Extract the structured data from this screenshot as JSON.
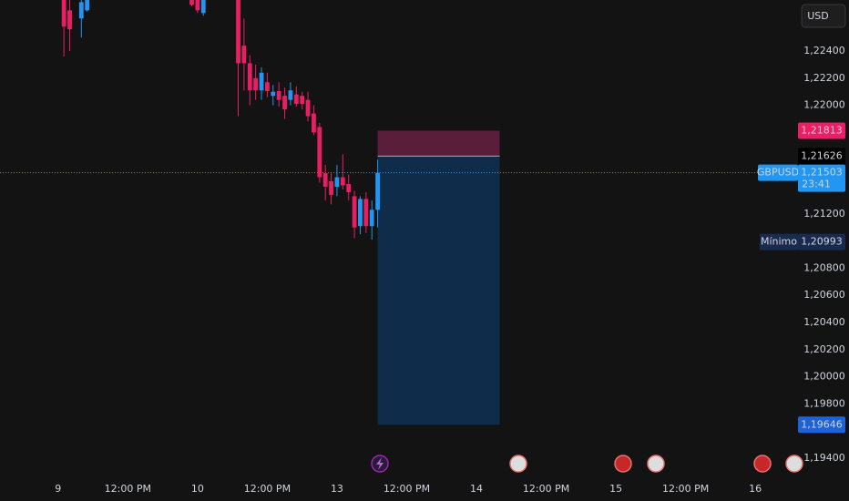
{
  "chart_data": {
    "type": "candlestick",
    "symbol": "GBPUSD",
    "currency": "USD",
    "up_color": "#2196f3",
    "down_color": "#e91e63",
    "x": [
      1,
      2,
      4,
      5,
      23,
      24,
      25,
      31,
      32,
      33,
      34,
      35,
      36,
      37,
      38,
      39,
      40,
      41,
      42,
      43,
      44,
      45,
      46,
      47,
      48,
      49,
      50,
      51,
      52,
      53,
      54,
      55
    ],
    "open": [
      1.228,
      1.227,
      1.2264,
      1.227,
      1.228,
      1.2279,
      1.2268,
      1.228,
      1.2244,
      1.2231,
      1.222,
      1.2211,
      1.2217,
      1.2207,
      1.22105,
      1.2207,
      1.2204,
      1.2208,
      1.2207,
      1.2204,
      1.2194,
      1.2184,
      1.215,
      1.2144,
      1.214,
      1.2147,
      1.2142,
      1.2133,
      1.2111,
      1.2131,
      1.2111,
      1.2123
    ],
    "high": [
      1.2285,
      1.228,
      1.228,
      1.228,
      1.2285,
      1.2285,
      1.228,
      1.2285,
      1.2264,
      1.2237,
      1.223,
      1.2228,
      1.2224,
      1.2215,
      1.2217,
      1.2213,
      1.2217,
      1.2214,
      1.221,
      1.221,
      1.22,
      1.2187,
      1.2156,
      1.215,
      1.2156,
      1.2164,
      1.2149,
      1.2137,
      1.2133,
      1.2136,
      1.213,
      1.216
    ],
    "low": [
      1.2236,
      1.224,
      1.225,
      1.2269,
      1.2273,
      1.2268,
      1.2266,
      1.2192,
      1.2211,
      1.22,
      1.2204,
      1.2204,
      1.2206,
      1.22,
      1.2199,
      1.219,
      1.22,
      1.2199,
      1.2197,
      1.2188,
      1.2178,
      1.2143,
      1.213,
      1.2127,
      1.2133,
      1.2138,
      1.213,
      1.2102,
      1.2105,
      1.2106,
      1.2101,
      1.211
    ],
    "close": [
      1.2258,
      1.2256,
      1.2276,
      1.2278,
      1.2274,
      1.227,
      1.2278,
      1.2231,
      1.2231,
      1.2211,
      1.2211,
      1.2224,
      1.22105,
      1.221,
      1.2204,
      1.2197,
      1.2211,
      1.2201,
      1.2201,
      1.2192,
      1.218,
      1.2147,
      1.214,
      1.2134,
      1.2147,
      1.2141,
      1.2136,
      1.211,
      1.2131,
      1.2111,
      1.2123,
      1.21503
    ],
    "xlim": [
      -10,
      126.4
    ],
    "ylim": [
      1.19252,
      1.22776
    ],
    "xticks": [
      {
        "value": 0,
        "label": "9"
      },
      {
        "value": 12,
        "label": "12:00 PM"
      },
      {
        "value": 24,
        "label": "10"
      },
      {
        "value": 36,
        "label": "12:00 PM"
      },
      {
        "value": 48,
        "label": "13"
      },
      {
        "value": 60,
        "label": "12:00 PM"
      },
      {
        "value": 72,
        "label": "14"
      },
      {
        "value": 84,
        "label": "12:00 PM"
      },
      {
        "value": 96,
        "label": "15"
      },
      {
        "value": 108,
        "label": "12:00 PM"
      },
      {
        "value": 120,
        "label": "16"
      }
    ],
    "yticks": [
      {
        "value": 1.224,
        "label": "1,22400"
      },
      {
        "value": 1.222,
        "label": "1,22200"
      },
      {
        "value": 1.22,
        "label": "1,22000"
      },
      {
        "value": 1.212,
        "label": "1,21200"
      },
      {
        "value": 1.208,
        "label": "1,20800"
      },
      {
        "value": 1.206,
        "label": "1,20600"
      },
      {
        "value": 1.204,
        "label": "1,20400"
      },
      {
        "value": 1.202,
        "label": "1,20200"
      },
      {
        "value": 1.2,
        "label": "1,20000"
      },
      {
        "value": 1.198,
        "label": "1,19800"
      },
      {
        "value": 1.194,
        "label": "1,19400"
      }
    ],
    "current_price": {
      "value": 1.21503,
      "label": "1,21503",
      "countdown": "23:41"
    },
    "low_marker": {
      "name": "Mínimo",
      "value": 1.20993,
      "label": "1,20993"
    },
    "position": {
      "start": 55,
      "end": 76,
      "stop": {
        "value": 1.21813,
        "label": "1,21813"
      },
      "entry": {
        "value": 1.21626,
        "label": "1,21626"
      },
      "target": {
        "value": 1.19646,
        "label": "1,19646"
      }
    }
  }
}
